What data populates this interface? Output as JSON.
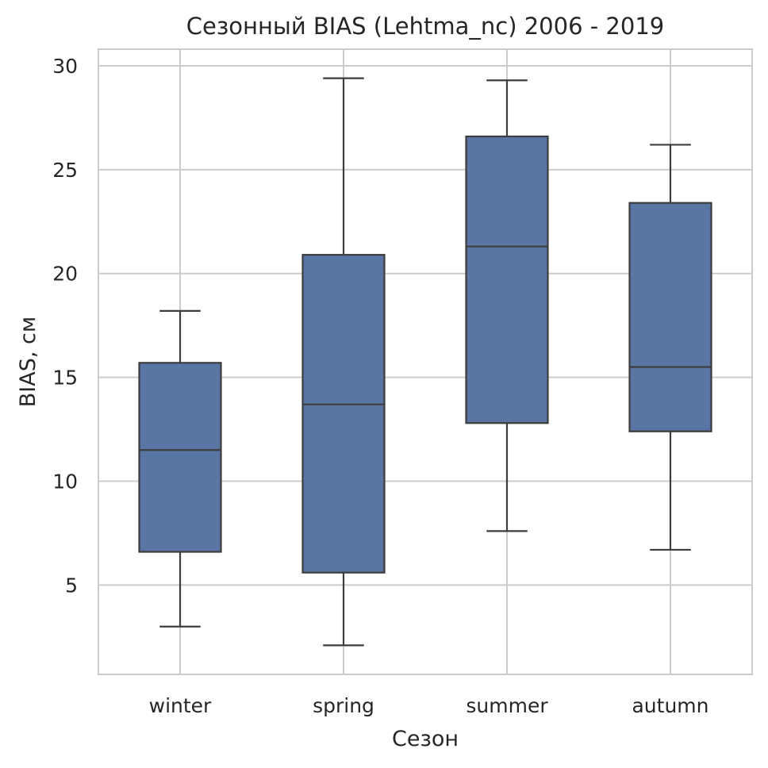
{
  "chart_data": {
    "type": "box",
    "title": "Сезонный BIAS (Lehtma_nc) 2006 - 2019",
    "xlabel": "Сезон",
    "ylabel": "BIAS, см",
    "categories": [
      "winter",
      "spring",
      "summer",
      "autumn"
    ],
    "ylim": [
      0.7,
      30.8
    ],
    "yticks": [
      5,
      10,
      15,
      20,
      25,
      30
    ],
    "grid": true,
    "box_color": "#5875a4",
    "line_color": "#3d3d3d",
    "grid_color": "#cccccc",
    "boxes": [
      {
        "category": "winter",
        "whisker_low": 3.0,
        "q1": 6.6,
        "median": 11.5,
        "q3": 15.7,
        "whisker_high": 18.2
      },
      {
        "category": "spring",
        "whisker_low": 2.1,
        "q1": 5.6,
        "median": 13.7,
        "q3": 20.9,
        "whisker_high": 29.4
      },
      {
        "category": "summer",
        "whisker_low": 7.6,
        "q1": 12.8,
        "median": 21.3,
        "q3": 26.6,
        "whisker_high": 29.3
      },
      {
        "category": "autumn",
        "whisker_low": 6.7,
        "q1": 12.4,
        "median": 15.5,
        "q3": 23.4,
        "whisker_high": 26.2
      }
    ]
  }
}
